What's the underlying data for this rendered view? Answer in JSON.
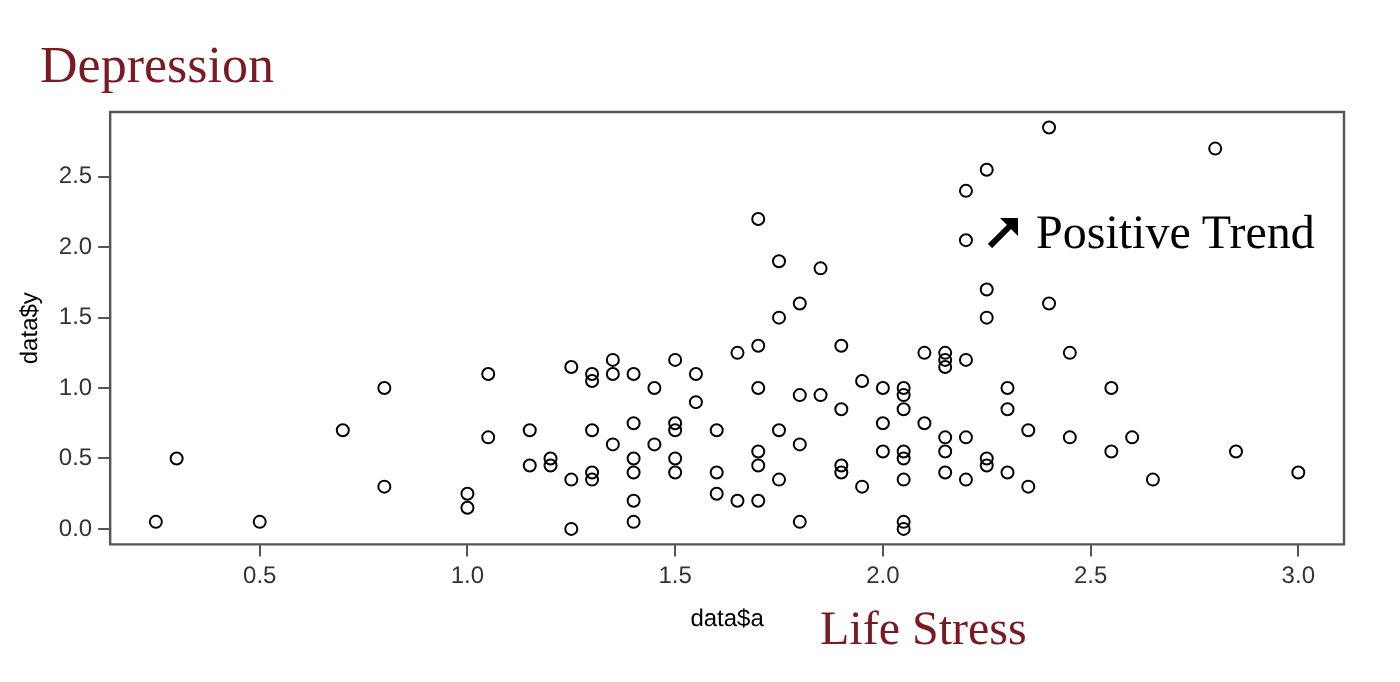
{
  "chart_data": {
    "type": "scatter",
    "title": "Depression",
    "xlabel": "data$a",
    "ylabel": "data$y",
    "annotations": [
      "Life Stress",
      "Positive Trend"
    ],
    "xlim": [
      0.14,
      3.11
    ],
    "ylim": [
      -0.11,
      2.96
    ],
    "xticks": [
      {
        "value": 0.5,
        "label": "0.5"
      },
      {
        "value": 1,
        "label": "1.0"
      },
      {
        "value": 1.5,
        "label": "1.5"
      },
      {
        "value": 2,
        "label": "2.0"
      },
      {
        "value": 2.5,
        "label": "2.5"
      },
      {
        "value": 3,
        "label": "3.0"
      }
    ],
    "yticks": [
      {
        "value": 0,
        "label": "0.0"
      },
      {
        "value": 0.5,
        "label": "0.5"
      },
      {
        "value": 1,
        "label": "1.0"
      },
      {
        "value": 1.5,
        "label": "1.5"
      },
      {
        "value": 2,
        "label": "2.0"
      },
      {
        "value": 2.5,
        "label": "2.5"
      }
    ],
    "grid": false,
    "legend": false,
    "marker": "circle",
    "series": [
      {
        "color": "#000000",
        "x": [
          0.25,
          0.3,
          0.5,
          0.7,
          0.8,
          0.8,
          1.0,
          1.0,
          1.05,
          1.05,
          1.15,
          1.15,
          1.2,
          1.2,
          1.25,
          1.25,
          1.25,
          1.3,
          1.3,
          1.3,
          1.3,
          1.3,
          1.35,
          1.35,
          1.35,
          1.4,
          1.4,
          1.4,
          1.4,
          1.4,
          1.4,
          1.45,
          1.45,
          1.5,
          1.5,
          1.5,
          1.5,
          1.5,
          1.55,
          1.55,
          1.6,
          1.6,
          1.6,
          1.65,
          1.65,
          1.7,
          1.7,
          1.7,
          1.7,
          1.7,
          1.7,
          1.75,
          1.75,
          1.75,
          1.75,
          1.8,
          1.8,
          1.8,
          1.8,
          1.85,
          1.85,
          1.9,
          1.9,
          1.9,
          1.9,
          1.95,
          1.95,
          2.0,
          2.0,
          2.0,
          2.05,
          2.05,
          2.05,
          2.05,
          2.05,
          2.05,
          2.05,
          2.05,
          2.1,
          2.1,
          2.15,
          2.15,
          2.15,
          2.15,
          2.15,
          2.15,
          2.2,
          2.2,
          2.2,
          2.2,
          2.2,
          2.25,
          2.25,
          2.25,
          2.25,
          2.25,
          2.3,
          2.3,
          2.3,
          2.35,
          2.35,
          2.4,
          2.4,
          2.45,
          2.45,
          2.55,
          2.55,
          2.6,
          2.65,
          2.8,
          2.85,
          3.0
        ],
        "values": [
          0.05,
          0.5,
          0.05,
          0.7,
          1.0,
          0.3,
          0.25,
          0.15,
          1.1,
          0.65,
          0.7,
          0.45,
          0.5,
          0.45,
          1.15,
          0.35,
          0.0,
          1.1,
          1.05,
          0.7,
          0.4,
          0.35,
          1.2,
          1.1,
          0.6,
          1.1,
          0.75,
          0.5,
          0.4,
          0.2,
          0.05,
          1.0,
          0.6,
          1.2,
          0.75,
          0.7,
          0.5,
          0.4,
          1.1,
          0.9,
          0.7,
          0.4,
          0.25,
          1.25,
          0.2,
          2.2,
          1.3,
          1.0,
          0.55,
          0.45,
          0.2,
          1.9,
          1.5,
          0.7,
          0.35,
          1.6,
          0.95,
          0.6,
          0.05,
          1.85,
          0.95,
          1.3,
          0.85,
          0.45,
          0.4,
          1.05,
          0.3,
          1.0,
          0.75,
          0.55,
          1.0,
          0.95,
          0.85,
          0.55,
          0.5,
          0.35,
          0.05,
          0.0,
          1.25,
          0.75,
          1.25,
          1.2,
          1.15,
          0.65,
          0.55,
          0.4,
          2.4,
          2.05,
          1.2,
          0.65,
          0.35,
          2.55,
          1.7,
          1.5,
          0.5,
          0.45,
          1.0,
          0.85,
          0.4,
          0.7,
          0.3,
          2.85,
          1.6,
          1.25,
          0.65,
          1.0,
          0.55,
          0.65,
          0.35,
          2.7,
          0.55,
          0.4
        ]
      }
    ]
  }
}
